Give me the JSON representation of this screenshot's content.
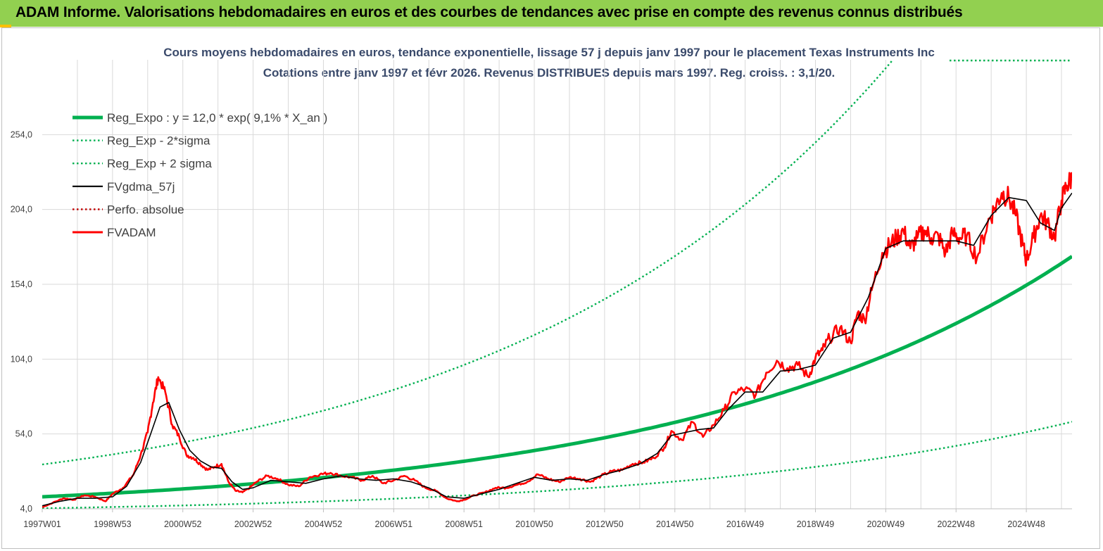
{
  "header": {
    "title": "ADAM Informe. Valorisations hebdomadaires en euros et des courbes de tendances avec prise en compte des revenus connus distribués"
  },
  "colors": {
    "banner": "#92d050",
    "reg": "#00b050",
    "fv": "#000000",
    "adam": "#ff0000",
    "grid": "#d9d9d9"
  },
  "chart_data": {
    "type": "line",
    "title_line1": "Cours moyens hebdomadaires en euros, tendance exponentielle, lissage 57 j depuis janv 1997 pour le placement Texas Instruments Inc",
    "title_line2": "Cotations entre janv 1997 et févr 2026. Revenus DISTRIBUES depuis mars 1997. Reg. croiss. : 3,1/20.",
    "xlabel": "",
    "ylabel": "",
    "xlim": [
      1997.0,
      2026.3
    ],
    "ylim": [
      4.0,
      304.0
    ],
    "y_ticks": [
      "4,0",
      "54,0",
      "104,0",
      "154,0",
      "204,0",
      "254,0"
    ],
    "y_tick_values": [
      4,
      54,
      104,
      154,
      204,
      254
    ],
    "x_ticks": [
      "1997W01",
      "1998W53",
      "2000W52",
      "2002W52",
      "2004W52",
      "2006W51",
      "2008W51",
      "2010W50",
      "2012W50",
      "2014W50",
      "2016W49",
      "2018W49",
      "2020W49",
      "2022W48",
      "2024W48"
    ],
    "x_tick_values": [
      1997.0,
      1999.0,
      2001.0,
      2003.0,
      2005.0,
      2007.0,
      2009.0,
      2011.0,
      2013.0,
      2015.0,
      2017.0,
      2019.0,
      2021.0,
      2023.0,
      2025.0
    ],
    "legend": [
      {
        "key": "reg",
        "label": "Reg_Expo : y = 12,0 * exp( 9,1% *  X_an )",
        "color": "#00b050",
        "style": "solid-thick"
      },
      {
        "key": "minus",
        "label": "Reg_Exp - 2*sigma",
        "color": "#00b050",
        "style": "dotted"
      },
      {
        "key": "plus",
        "label": "Reg_Exp + 2 sigma",
        "color": "#00b050",
        "style": "dotted"
      },
      {
        "key": "fv",
        "label": "FVgdma_57j",
        "color": "#000000",
        "style": "solid-thin"
      },
      {
        "key": "perfo",
        "label": "Perfo. absolue",
        "color": "#c00000",
        "style": "dotted"
      },
      {
        "key": "adam",
        "label": "FVADAM",
        "color": "#ff0000",
        "style": "solid"
      }
    ],
    "series": [
      {
        "name": "Reg_Expo",
        "formula": "y = 12,0 * exp( 9,1% * X_an )",
        "a": 12.0,
        "b": 0.091,
        "factor": 1.0
      },
      {
        "name": "Reg_Exp - 2*sigma",
        "a": 12.0,
        "b": 0.091,
        "factor": 0.36
      },
      {
        "name": "Reg_Exp + 2 sigma",
        "a": 12.0,
        "b": 0.091,
        "factor": 2.8
      },
      {
        "name": "FVADAM",
        "x": [
          1997.0,
          1997.3,
          1997.6,
          1997.9,
          1998.2,
          1998.5,
          1998.8,
          1999.0,
          1999.3,
          1999.6,
          1999.8,
          2000.0,
          2000.15,
          2000.3,
          2000.5,
          2000.7,
          2000.9,
          2001.1,
          2001.3,
          2001.5,
          2001.7,
          2001.9,
          2002.1,
          2002.3,
          2002.5,
          2002.7,
          2002.9,
          2003.1,
          2003.4,
          2003.7,
          2004.0,
          2004.3,
          2004.6,
          2004.9,
          2005.2,
          2005.5,
          2005.8,
          2006.1,
          2006.4,
          2006.7,
          2007.0,
          2007.3,
          2007.6,
          2007.9,
          2008.2,
          2008.5,
          2008.8,
          2009.0,
          2009.3,
          2009.6,
          2009.9,
          2010.2,
          2010.5,
          2010.8,
          2011.1,
          2011.4,
          2011.7,
          2012.0,
          2012.3,
          2012.6,
          2012.9,
          2013.2,
          2013.5,
          2013.8,
          2014.1,
          2014.4,
          2014.7,
          2014.9,
          2015.2,
          2015.5,
          2015.8,
          2016.1,
          2016.4,
          2016.7,
          2017.0,
          2017.3,
          2017.6,
          2017.9,
          2018.2,
          2018.5,
          2018.8,
          2019.0,
          2019.2,
          2019.4,
          2019.7,
          2020.0,
          2020.2,
          2020.4,
          2020.6,
          2020.9,
          2021.1,
          2021.3,
          2021.5,
          2021.7,
          2021.9,
          2022.1,
          2022.3,
          2022.5,
          2022.7,
          2022.9,
          2023.1,
          2023.3,
          2023.6,
          2023.9,
          2024.1,
          2024.3,
          2024.5,
          2024.7,
          2024.9,
          2025.0,
          2025.2,
          2025.4,
          2025.6,
          2025.8,
          2026.0,
          2026.15,
          2026.3
        ],
        "y": [
          5,
          8,
          11,
          10,
          13,
          12,
          9,
          14,
          18,
          27,
          40,
          55,
          75,
          92,
          82,
          60,
          52,
          40,
          38,
          34,
          30,
          32,
          34,
          22,
          16,
          15,
          18,
          22,
          26,
          24,
          20,
          19,
          25,
          27,
          28,
          26,
          25,
          23,
          26,
          21,
          23,
          26,
          23,
          18,
          16,
          11,
          9,
          10,
          13,
          15,
          18,
          18,
          20,
          22,
          27,
          24,
          22,
          25,
          24,
          22,
          26,
          29,
          30,
          34,
          35,
          38,
          45,
          56,
          50,
          62,
          52,
          60,
          70,
          82,
          84,
          80,
          95,
          103,
          98,
          100,
          92,
          105,
          110,
          118,
          125,
          115,
          135,
          130,
          150,
          175,
          180,
          185,
          190,
          178,
          185,
          190,
          185,
          186,
          175,
          188,
          185,
          186,
          172,
          195,
          205,
          215,
          212,
          200,
          180,
          170,
          185,
          200,
          195,
          185,
          210,
          220,
          225
        ]
      },
      {
        "name": "FVgdma_57j",
        "x": [
          1997.0,
          1997.5,
          1998.0,
          1998.5,
          1999.0,
          1999.4,
          1999.8,
          2000.1,
          2000.35,
          2000.6,
          2000.9,
          2001.2,
          2001.5,
          2001.8,
          2002.1,
          2002.4,
          2002.7,
          2003.0,
          2003.5,
          2004.0,
          2004.5,
          2005.0,
          2005.5,
          2006.0,
          2006.5,
          2007.0,
          2007.5,
          2008.0,
          2008.5,
          2009.0,
          2009.5,
          2010.0,
          2010.5,
          2011.0,
          2011.5,
          2012.0,
          2012.5,
          2013.0,
          2013.5,
          2014.0,
          2014.5,
          2014.9,
          2015.3,
          2015.7,
          2016.1,
          2016.5,
          2017.0,
          2017.5,
          2018.0,
          2018.5,
          2019.0,
          2019.5,
          2020.0,
          2020.5,
          2021.0,
          2021.5,
          2022.0,
          2022.5,
          2023.0,
          2023.5,
          2024.0,
          2024.5,
          2025.0,
          2025.4,
          2025.8,
          2026.0,
          2026.3
        ],
        "y": [
          6,
          9,
          11,
          11,
          12,
          19,
          35,
          55,
          72,
          75,
          57,
          43,
          36,
          32,
          31,
          22,
          17,
          18,
          23,
          22,
          21,
          24,
          26,
          24,
          23,
          24,
          22,
          18,
          12,
          11,
          14,
          17,
          21,
          25,
          23,
          24,
          23,
          27,
          30,
          34,
          41,
          53,
          55,
          57,
          58,
          70,
          82,
          82,
          96,
          97,
          100,
          118,
          122,
          145,
          178,
          183,
          183,
          183,
          183,
          180,
          200,
          212,
          210,
          195,
          190,
          205,
          215
        ]
      }
    ]
  }
}
